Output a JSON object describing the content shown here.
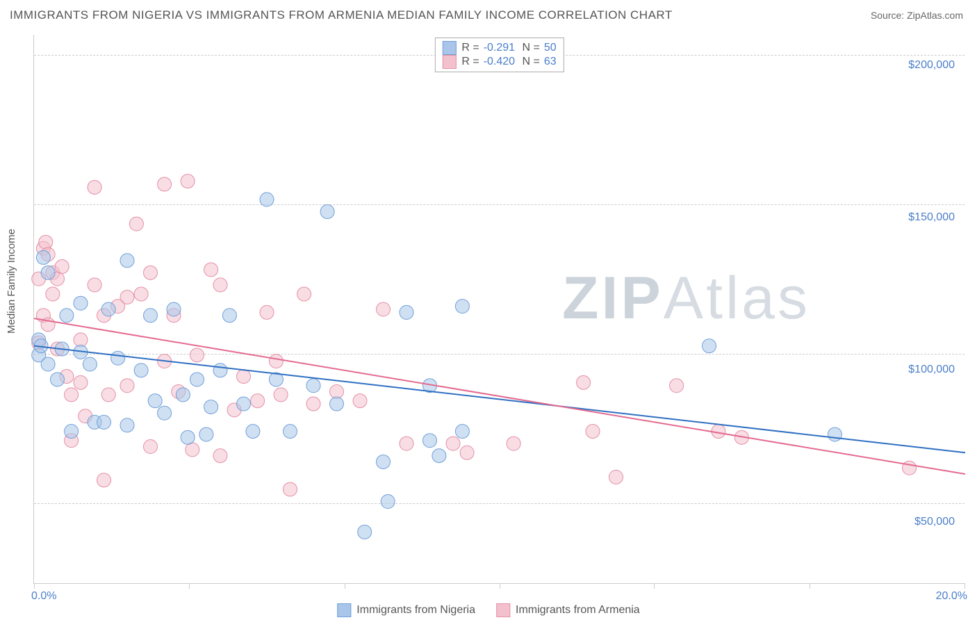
{
  "title": "IMMIGRANTS FROM NIGERIA VS IMMIGRANTS FROM ARMENIA MEDIAN FAMILY INCOME CORRELATION CHART",
  "source": "Source: ZipAtlas.com",
  "y_axis_label": "Median Family Income",
  "watermark": "ZIPAtlas",
  "chart": {
    "type": "scatter",
    "xlim": [
      0,
      20
    ],
    "ylim": [
      30000,
      210000
    ],
    "x_ticks": [
      0,
      3.33,
      6.67,
      10,
      13.33,
      16.67,
      20
    ],
    "x_tick_labels": {
      "0": "0.0%",
      "20": "20.0%"
    },
    "y_grid": [
      50000,
      100000,
      150000,
      200000
    ],
    "y_tick_labels": [
      "$50,000",
      "$100,000",
      "$150,000",
      "$200,000"
    ],
    "grid_color": "#cccccc",
    "background_color": "#ffffff",
    "point_radius": 10,
    "point_opacity": 0.55,
    "line_width": 2
  },
  "series": [
    {
      "name": "Immigrants from Nigeria",
      "color_fill": "#a9c6ea",
      "color_stroke": "#6f9fd8",
      "line_color": "#2e6fc2",
      "R": "-0.291",
      "N": "50",
      "trend": {
        "x1": 0,
        "y1": 108000,
        "x2": 20,
        "y2": 73000
      },
      "points": [
        [
          0.1,
          110000
        ],
        [
          0.1,
          105000
        ],
        [
          0.15,
          108000
        ],
        [
          0.2,
          137000
        ],
        [
          0.3,
          132000
        ],
        [
          0.3,
          102000
        ],
        [
          0.5,
          97000
        ],
        [
          0.6,
          107000
        ],
        [
          0.7,
          118000
        ],
        [
          0.8,
          80000
        ],
        [
          1.0,
          122000
        ],
        [
          1.0,
          106000
        ],
        [
          1.2,
          102000
        ],
        [
          1.3,
          83000
        ],
        [
          1.5,
          83000
        ],
        [
          1.6,
          120000
        ],
        [
          1.8,
          104000
        ],
        [
          2.0,
          136000
        ],
        [
          2.0,
          82000
        ],
        [
          2.3,
          100000
        ],
        [
          2.5,
          118000
        ],
        [
          2.6,
          90000
        ],
        [
          2.8,
          86000
        ],
        [
          3.0,
          120000
        ],
        [
          3.2,
          92000
        ],
        [
          3.3,
          78000
        ],
        [
          3.5,
          97000
        ],
        [
          3.7,
          79000
        ],
        [
          3.8,
          88000
        ],
        [
          4.0,
          100000
        ],
        [
          4.2,
          118000
        ],
        [
          4.5,
          89000
        ],
        [
          4.7,
          80000
        ],
        [
          5.0,
          156000
        ],
        [
          5.2,
          97000
        ],
        [
          5.5,
          80000
        ],
        [
          6.0,
          95000
        ],
        [
          6.3,
          152000
        ],
        [
          6.5,
          89000
        ],
        [
          7.1,
          47000
        ],
        [
          7.5,
          70000
        ],
        [
          7.6,
          57000
        ],
        [
          8.0,
          119000
        ],
        [
          8.5,
          95000
        ],
        [
          8.5,
          77000
        ],
        [
          8.7,
          72000
        ],
        [
          9.2,
          121000
        ],
        [
          9.2,
          80000
        ],
        [
          14.5,
          108000
        ],
        [
          17.2,
          79000
        ]
      ]
    },
    {
      "name": "Immigrants from Armenia",
      "color_fill": "#f3c1cd",
      "color_stroke": "#e58fa5",
      "line_color": "#e36a8f",
      "R": "-0.420",
      "N": "63",
      "trend": {
        "x1": 0,
        "y1": 117000,
        "x2": 20,
        "y2": 66000
      },
      "points": [
        [
          0.1,
          109000
        ],
        [
          0.1,
          130000
        ],
        [
          0.2,
          140000
        ],
        [
          0.2,
          118000
        ],
        [
          0.25,
          142000
        ],
        [
          0.3,
          138000
        ],
        [
          0.3,
          115000
        ],
        [
          0.4,
          132000
        ],
        [
          0.4,
          125000
        ],
        [
          0.5,
          130000
        ],
        [
          0.5,
          107000
        ],
        [
          0.6,
          134000
        ],
        [
          0.7,
          98000
        ],
        [
          0.8,
          92000
        ],
        [
          0.8,
          77000
        ],
        [
          1.0,
          110000
        ],
        [
          1.0,
          96000
        ],
        [
          1.1,
          85000
        ],
        [
          1.3,
          160000
        ],
        [
          1.3,
          128000
        ],
        [
          1.5,
          64000
        ],
        [
          1.5,
          118000
        ],
        [
          1.6,
          92000
        ],
        [
          1.8,
          121000
        ],
        [
          2.0,
          124000
        ],
        [
          2.0,
          95000
        ],
        [
          2.2,
          148000
        ],
        [
          2.3,
          125000
        ],
        [
          2.5,
          132000
        ],
        [
          2.5,
          75000
        ],
        [
          2.8,
          103000
        ],
        [
          2.8,
          161000
        ],
        [
          3.0,
          118000
        ],
        [
          3.1,
          93000
        ],
        [
          3.3,
          162000
        ],
        [
          3.4,
          74000
        ],
        [
          3.5,
          105000
        ],
        [
          3.8,
          133000
        ],
        [
          4.0,
          128000
        ],
        [
          4.0,
          72000
        ],
        [
          4.3,
          87000
        ],
        [
          4.5,
          98000
        ],
        [
          4.8,
          90000
        ],
        [
          5.0,
          119000
        ],
        [
          5.2,
          103000
        ],
        [
          5.3,
          92000
        ],
        [
          5.5,
          61000
        ],
        [
          5.8,
          125000
        ],
        [
          6.0,
          89000
        ],
        [
          6.5,
          93000
        ],
        [
          7.0,
          90000
        ],
        [
          7.5,
          120000
        ],
        [
          8.0,
          76000
        ],
        [
          9.0,
          76000
        ],
        [
          9.3,
          73000
        ],
        [
          10.3,
          76000
        ],
        [
          11.8,
          96000
        ],
        [
          12.0,
          80000
        ],
        [
          12.5,
          65000
        ],
        [
          13.8,
          95000
        ],
        [
          14.7,
          80000
        ],
        [
          15.2,
          78000
        ],
        [
          18.8,
          68000
        ]
      ]
    }
  ]
}
